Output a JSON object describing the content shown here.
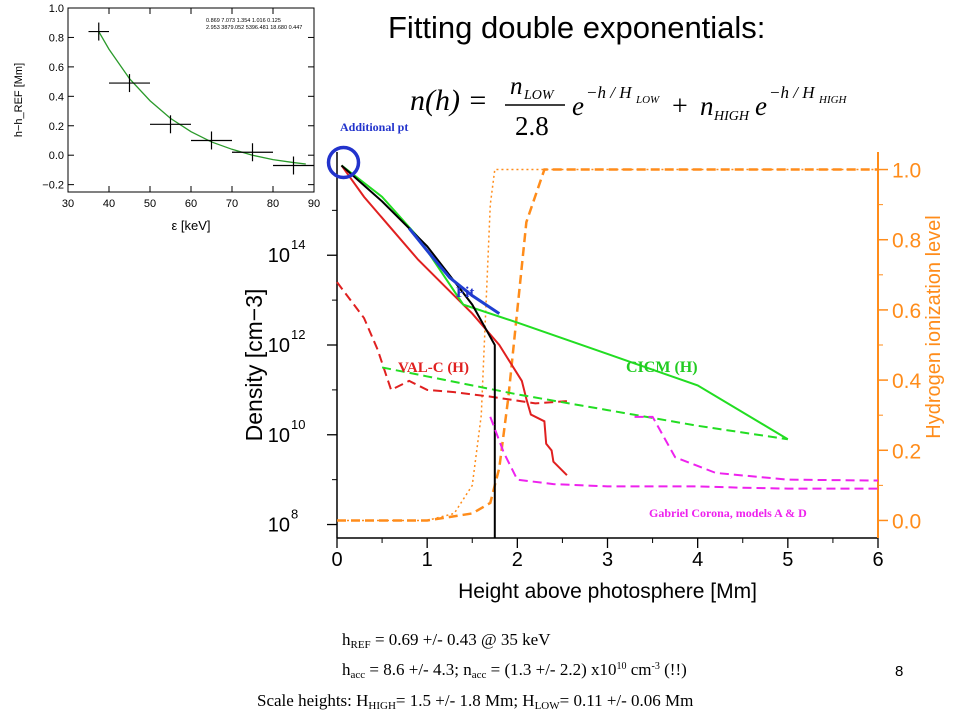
{
  "slide": {
    "title": "Fitting double exponentials:",
    "page_number": "8",
    "equation": {
      "lhs": "n(h) =",
      "n_low": "n",
      "n_low_sub": "LOW",
      "denominator": "2.8",
      "e1": "e",
      "exp1": "−h / H",
      "exp1_sub": "LOW",
      "plus": "+",
      "n_high": "n",
      "n_high_sub": "HIGH",
      "e2": "e",
      "exp2": "−h / H",
      "exp2_sub": "HIGH"
    },
    "footer": {
      "line1": {
        "a": "h",
        "a_sub": "REF",
        "b": " = 0.69 +/- 0.43 @ 35 keV"
      },
      "line2": {
        "a": "h",
        "a_sub": "acc",
        "b": " =  8.6 +/- 4.3; n",
        "b_sub": "acc",
        "c": " = (1.3 +/- 2.2) x10",
        "c_sup": "10",
        "d": " cm",
        "d_sup": "-3",
        "e": " (!!)"
      },
      "line3": {
        "a": "Scale heights: H",
        "a_sub": "HIGH",
        "b": "= 1.5 +/- 1.8 Mm; H",
        "b_sub": "LOW",
        "c": "= 0.11 +/- 0.06 Mm"
      }
    }
  },
  "chart_data": [
    {
      "type": "scatter",
      "title": "",
      "xlabel": "ε [keV]",
      "ylabel": "h−h_REF [Mm]",
      "xlim": [
        30,
        90
      ],
      "ylim": [
        -0.25,
        1.0
      ],
      "x_ticks": [
        "30",
        "40",
        "50",
        "60",
        "70",
        "80",
        "90"
      ],
      "y_ticks": [
        "1.0",
        "0.8",
        "0.6",
        "0.4",
        "0.2",
        "0.0",
        "−0.2"
      ],
      "annotation_lines": [
        "0.869 7.073 1.354 1.016 0.125",
        "2.953 3879.052 5396.481 18.680 0.447"
      ],
      "points": [
        {
          "x": 37.5,
          "y": 0.84,
          "xerr": 2.5
        },
        {
          "x": 45,
          "y": 0.49,
          "xerr": 5
        },
        {
          "x": 55,
          "y": 0.21,
          "xerr": 5
        },
        {
          "x": 65,
          "y": 0.1,
          "xerr": 5
        },
        {
          "x": 75,
          "y": 0.02,
          "xerr": 5
        },
        {
          "x": 85,
          "y": -0.07,
          "xerr": 5
        }
      ],
      "fit_curve": {
        "x": [
          37.5,
          40,
          45,
          50,
          55,
          60,
          65,
          70,
          75,
          80,
          85,
          88
        ],
        "y": [
          0.84,
          0.72,
          0.52,
          0.37,
          0.25,
          0.16,
          0.09,
          0.04,
          0.0,
          -0.03,
          -0.05,
          -0.06
        ],
        "color": "#2a9a2a"
      }
    },
    {
      "type": "line",
      "title": "",
      "xlabel": "Height above photosphere [Mm]",
      "ylabel": "Density [cm−3]",
      "ylabel_right": "Hydrogen ionization level",
      "xlim": [
        0,
        6
      ],
      "ylim_log10": [
        7.7,
        16.3
      ],
      "ylim_right": [
        -0.05,
        1.05
      ],
      "x_ticks": [
        "0",
        "1",
        "2",
        "3",
        "4",
        "5",
        "6"
      ],
      "y_ticks": [
        {
          "base": "10",
          "exp": "8",
          "v": 8
        },
        {
          "base": "10",
          "exp": "10",
          "v": 10
        },
        {
          "base": "10",
          "exp": "12",
          "v": 12
        },
        {
          "base": "10",
          "exp": "14",
          "v": 14
        }
      ],
      "y_right_ticks": [
        "0.0",
        "0.2",
        "0.4",
        "0.6",
        "0.8",
        "1.0"
      ],
      "labels": {
        "fit": "Fit",
        "valc": "VAL-C (H)",
        "cicm": "CICM (H)",
        "gabriel": "Gabriel Corona, models A & D",
        "additional": "Additional pt"
      },
      "series": [
        {
          "name": "VAL-C (H)",
          "color": "#e02020",
          "dash": false,
          "x": [
            0.05,
            0.3,
            0.6,
            0.9,
            1.2,
            1.5,
            1.8,
            2.05,
            2.1,
            2.15,
            2.3,
            2.32,
            2.38,
            2.4,
            2.55
          ],
          "y": [
            16.0,
            15.3,
            14.6,
            13.9,
            13.3,
            12.7,
            12.0,
            11.2,
            10.8,
            10.45,
            10.3,
            9.8,
            9.65,
            9.4,
            9.1
          ]
        },
        {
          "name": "",
          "color": "#e02020",
          "dash": true,
          "x": [
            0.0,
            0.15,
            0.3,
            0.45,
            0.6,
            0.8,
            1.0,
            1.3,
            1.7,
            2.2,
            2.55
          ],
          "y": [
            13.4,
            13.0,
            12.6,
            11.9,
            11.0,
            11.2,
            11.0,
            10.95,
            10.85,
            10.7,
            10.75
          ]
        },
        {
          "name": "CICM (H)",
          "color": "#22dd22",
          "dash": false,
          "x": [
            0.05,
            0.5,
            0.9,
            1.4,
            2.0,
            3.0,
            4.0,
            5.0
          ],
          "y": [
            16.0,
            15.3,
            14.4,
            12.9,
            12.5,
            11.8,
            11.1,
            9.9
          ]
        },
        {
          "name": "",
          "color": "#22dd22",
          "dash": true,
          "x": [
            0.5,
            1.0,
            2.0,
            3.0,
            4.0,
            5.0
          ],
          "y": [
            11.5,
            11.3,
            10.9,
            10.55,
            10.2,
            9.9
          ]
        },
        {
          "name": "",
          "color": "#000000",
          "dash": false,
          "x": [
            0.05,
            0.5,
            1.0,
            1.5,
            1.75,
            1.75
          ],
          "y": [
            16.0,
            15.2,
            14.2,
            12.9,
            12.0,
            7.7
          ]
        },
        {
          "name": "Fit",
          "color": "#1f3fd0",
          "dash": false,
          "x": [
            0.8,
            1.0,
            1.25,
            1.5,
            1.8
          ],
          "y": [
            14.6,
            14.1,
            13.5,
            13.1,
            12.7
          ]
        },
        {
          "name": "Gabriel Corona, models A & D",
          "color": "#ee22ee",
          "dash": true,
          "x": [
            1.7,
            1.85,
            2.0,
            2.4,
            3.0,
            3.6,
            4.0,
            4.5,
            5.0,
            6.0
          ],
          "y": [
            10.4,
            9.6,
            9.0,
            8.9,
            8.85,
            8.85,
            8.85,
            8.82,
            8.8,
            8.8
          ]
        },
        {
          "name": "",
          "color": "#ee22ee",
          "dash": true,
          "x": [
            3.3,
            3.5,
            3.75,
            4.2,
            5.0,
            6.0
          ],
          "y": [
            10.4,
            10.4,
            9.5,
            9.15,
            9.0,
            8.98
          ]
        }
      ],
      "ionization_series": [
        {
          "name": "",
          "color": "#ff8c1a",
          "axis": "right",
          "style": "dashed",
          "x": [
            0.0,
            1.0,
            1.5,
            1.7,
            1.8,
            1.9,
            2.0,
            2.1,
            2.3,
            2.6,
            6.0
          ],
          "y": [
            0.0,
            0.0,
            0.02,
            0.05,
            0.15,
            0.35,
            0.6,
            0.85,
            1.0,
            1.0,
            1.0
          ]
        },
        {
          "name": "",
          "color": "#ff8c1a",
          "axis": "right",
          "style": "dotted",
          "x": [
            0.0,
            1.0,
            1.3,
            1.5,
            1.6,
            1.65,
            1.7,
            1.75,
            6.0
          ],
          "y": [
            0.0,
            0.0,
            0.02,
            0.1,
            0.3,
            0.6,
            0.9,
            1.0,
            1.0
          ]
        }
      ],
      "additional_point_marker": {
        "x": 0.05,
        "y_log10": 16.0,
        "color": "#2233cc"
      }
    }
  ]
}
